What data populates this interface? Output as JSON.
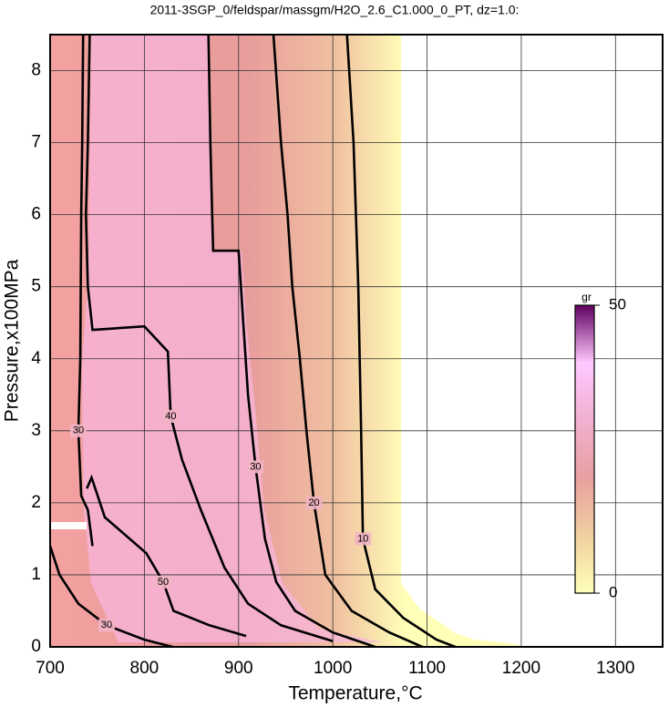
{
  "chart_data": {
    "type": "contour",
    "title": "2011-3SGP_0/feldspar/massgm/H2O_2.6_C1.000_0_PT, dz=1.0:",
    "x_label": "Temperature,°C",
    "y_label": "Pressure,x100MPa",
    "xlim": [
      700,
      1350
    ],
    "ylim": [
      0,
      8.5
    ],
    "xticks": [
      700,
      800,
      900,
      1000,
      1100,
      1200,
      1300
    ],
    "yticks": [
      0,
      1,
      2,
      3,
      4,
      5,
      6,
      7,
      8
    ],
    "grid": true,
    "line_color": "#000000",
    "contours": [
      {
        "level": 10,
        "x": [
          1015,
          1022,
          1027,
          1030,
          1032,
          1045,
          1075,
          1110,
          1130
        ],
        "y": [
          8.5,
          7,
          5,
          3,
          1.5,
          0.8,
          0.4,
          0.1,
          0
        ]
      },
      {
        "level": 20,
        "x": [
          937,
          945,
          952,
          957,
          965,
          972,
          980,
          992,
          1020,
          1060,
          1095
        ],
        "y": [
          8.5,
          7,
          6,
          5,
          4,
          3,
          2,
          1,
          0.5,
          0.2,
          0
        ]
      },
      {
        "level": 30,
        "x": [
          868,
          870,
          872,
          873,
          900,
          905,
          910,
          918,
          928,
          940,
          960,
          1000,
          1045
        ],
        "y": [
          8.5,
          7,
          6,
          5.5,
          5.5,
          4.5,
          3.5,
          2.5,
          1.5,
          0.9,
          0.5,
          0.2,
          0
        ]
      },
      {
        "level": 40,
        "x": [
          742,
          740,
          738,
          740,
          745,
          800,
          825,
          828,
          840,
          860,
          885,
          910,
          945,
          1000
        ],
        "y": [
          8.5,
          7,
          6,
          5,
          4.4,
          4.45,
          4.1,
          3.2,
          2.6,
          1.9,
          1.1,
          0.6,
          0.3,
          0.08
        ]
      },
      {
        "level": 50,
        "x": [
          739,
          744,
          758,
          802,
          820,
          831,
          869,
          908
        ],
        "y": [
          2.2,
          2.35,
          1.8,
          1.3,
          0.9,
          0.5,
          0.3,
          0.15
        ]
      },
      {
        "level": 30,
        "x": [
          735,
          734,
          733,
          732,
          730,
          733,
          740,
          745
        ],
        "y": [
          8.5,
          7,
          6,
          4,
          3,
          2.1,
          1.9,
          1.4
        ]
      },
      {
        "level": 30,
        "x": [
          700,
          710,
          730,
          760,
          800,
          830
        ],
        "y": [
          1.4,
          1.0,
          0.6,
          0.3,
          0.1,
          0
        ]
      }
    ],
    "colorbar": {
      "label": "gr",
      "lim": [
        0,
        50
      ],
      "ticks": [
        0,
        50
      ],
      "colors": [
        "#ffffb8",
        "#f0d0a0",
        "#e8a0a0",
        "#f0b0d0",
        "#ffc8ff",
        "#600060"
      ]
    }
  }
}
